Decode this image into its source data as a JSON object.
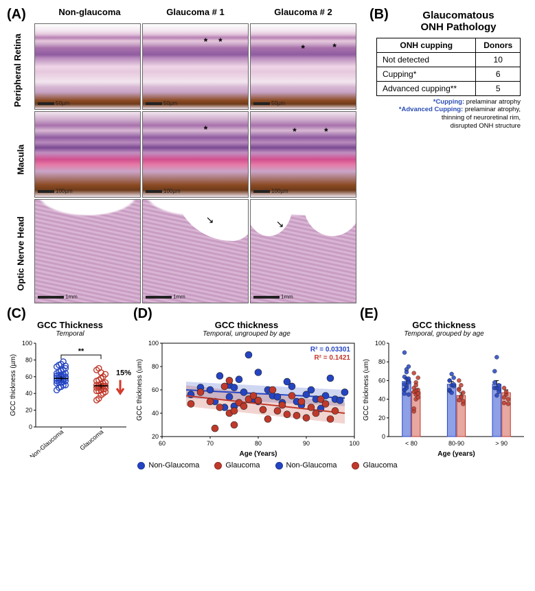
{
  "panelA": {
    "letter": "(A)",
    "col_headers": [
      "Non-glaucoma",
      "Glaucoma # 1",
      "Glaucoma # 2"
    ],
    "row_labels": [
      "Peripheral Retina",
      "Macula",
      "Optic Nerve Head"
    ],
    "scalebars": {
      "row0": "50µm",
      "row1": "100µm",
      "row2": "1mm"
    }
  },
  "panelB": {
    "letter": "(B)",
    "title_line1": "Glaucomatous",
    "title_line2": "ONH Pathology",
    "table": {
      "headers": [
        "ONH cupping",
        "Donors"
      ],
      "rows": [
        [
          "Not detected",
          "10"
        ],
        [
          "Cupping*",
          "6"
        ],
        [
          "Advanced cupping**",
          "5"
        ]
      ]
    },
    "footnote": {
      "l1_label": "*Cupping:",
      "l1_text": " prelaminar atrophy",
      "l2_label": "*Advanced Cupping:",
      "l2_text": " prelaminar atrophy,",
      "l3": "thinning of neuroretinal rim,",
      "l4": "disrupted ONH structure"
    }
  },
  "panelC": {
    "letter": "(C)",
    "title": "GCC Thickness",
    "subtitle": "Temporal",
    "plot": {
      "type": "scatter-groups",
      "ylabel": "GCC thickness (µm)",
      "ylim": [
        0,
        100
      ],
      "ytick_step": 20,
      "groups": [
        "Non-Glaucoma",
        "Glaucoma"
      ],
      "sig_label": "**",
      "pct_label": "15%",
      "arrow_color": "#d43a2a",
      "colors": {
        "Non-Glaucoma": "#2544c2",
        "Glaucoma": "#c0392b"
      },
      "marker_size": 4,
      "mean_se": {
        "Non-Glaucoma": [
          58,
          3
        ],
        "Glaucoma": [
          49,
          3
        ]
      },
      "points": {
        "Non-Glaucoma": [
          44,
          47,
          48,
          50,
          50,
          52,
          53,
          53,
          54,
          55,
          55,
          56,
          57,
          57,
          58,
          58,
          59,
          59,
          60,
          60,
          61,
          62,
          62,
          63,
          64,
          64,
          66,
          67,
          68,
          70,
          72,
          74,
          75,
          78,
          73
        ],
        "Glaucoma": [
          32,
          34,
          38,
          40,
          42,
          43,
          43,
          44,
          45,
          46,
          47,
          47,
          48,
          49,
          49,
          50,
          50,
          51,
          52,
          53,
          55,
          56,
          58,
          60,
          63,
          68,
          70,
          65
        ]
      }
    }
  },
  "panelD": {
    "letter": "(D)",
    "title": "GCC thickness",
    "subtitle": "Temporal, ungrouped by age",
    "plot": {
      "type": "scatter-regression",
      "xlabel": "Age (Years)",
      "ylabel": "GCC thickness (um)",
      "xlim": [
        60,
        100
      ],
      "xtick_step": 10,
      "ylim": [
        20,
        100
      ],
      "ytick_step": 20,
      "r2_blue_label": "R² = 0.03301",
      "r2_red_label": "R² = 0.1421",
      "colors": {
        "Non-Glaucoma": "#2544c2",
        "Glaucoma": "#c0392b"
      },
      "band_alpha": 0.22,
      "marker_size": 5,
      "lines": {
        "Non-Glaucoma": {
          "x0": 65,
          "y0": 60,
          "x1": 98,
          "y1": 53
        },
        "Glaucoma": {
          "x0": 65,
          "y0": 55,
          "x1": 98,
          "y1": 40
        }
      },
      "band_halfwidth": {
        "Non-Glaucoma": 7,
        "Glaucoma": 9
      },
      "points": {
        "Non-Glaucoma": [
          [
            66,
            56
          ],
          [
            68,
            62
          ],
          [
            70,
            60
          ],
          [
            71,
            50
          ],
          [
            72,
            72
          ],
          [
            73,
            45
          ],
          [
            74,
            64
          ],
          [
            74,
            54
          ],
          [
            75,
            62
          ],
          [
            75,
            46
          ],
          [
            76,
            69
          ],
          [
            77,
            58
          ],
          [
            78,
            90
          ],
          [
            79,
            52
          ],
          [
            80,
            75
          ],
          [
            80,
            50
          ],
          [
            82,
            60
          ],
          [
            83,
            55
          ],
          [
            84,
            54
          ],
          [
            85,
            49
          ],
          [
            86,
            67
          ],
          [
            87,
            63
          ],
          [
            88,
            50
          ],
          [
            89,
            47
          ],
          [
            90,
            56
          ],
          [
            91,
            60
          ],
          [
            92,
            52
          ],
          [
            93,
            44
          ],
          [
            94,
            55
          ],
          [
            95,
            70
          ],
          [
            96,
            52
          ],
          [
            97,
            51
          ],
          [
            98,
            58
          ]
        ],
        "Glaucoma": [
          [
            66,
            48
          ],
          [
            68,
            58
          ],
          [
            70,
            50
          ],
          [
            71,
            27
          ],
          [
            72,
            45
          ],
          [
            73,
            63
          ],
          [
            74,
            68
          ],
          [
            74,
            40
          ],
          [
            75,
            42
          ],
          [
            75,
            30
          ],
          [
            76,
            49
          ],
          [
            77,
            46
          ],
          [
            78,
            52
          ],
          [
            79,
            55
          ],
          [
            80,
            51
          ],
          [
            81,
            43
          ],
          [
            82,
            35
          ],
          [
            83,
            60
          ],
          [
            84,
            42
          ],
          [
            85,
            47
          ],
          [
            86,
            39
          ],
          [
            87,
            55
          ],
          [
            88,
            38
          ],
          [
            89,
            50
          ],
          [
            90,
            36
          ],
          [
            91,
            45
          ],
          [
            92,
            40
          ],
          [
            93,
            52
          ],
          [
            94,
            48
          ],
          [
            95,
            35
          ],
          [
            96,
            42
          ]
        ]
      }
    }
  },
  "panelE": {
    "letter": "(E)",
    "title": "GCC thickness",
    "subtitle": "Temporal, grouped by age",
    "plot": {
      "type": "grouped-bar-with-points",
      "ylabel": "GCC thickness (um)",
      "xlabel": "Age (years)",
      "ylim": [
        0,
        100
      ],
      "ytick_step": 20,
      "groups": [
        "< 80",
        "80-90",
        "> 90"
      ],
      "series": [
        "Non-Glaucoma",
        "Glaucoma"
      ],
      "colors": {
        "Non-Glaucoma_fill": "#8ea0e6",
        "Non-Glaucoma_edge": "#2544c2",
        "Glaucoma_fill": "#e6a8a1",
        "Glaucoma_edge": "#c0392b"
      },
      "bar_width": 0.38,
      "means_se": {
        "Non-Glaucoma": [
          [
            59,
            4
          ],
          [
            56,
            3
          ],
          [
            56,
            4
          ]
        ],
        "Glaucoma": [
          [
            48,
            3
          ],
          [
            44,
            3
          ],
          [
            47,
            3
          ]
        ]
      },
      "points": {
        "Non-Glaucoma": [
          [
            56,
            62,
            60,
            50,
            72,
            45,
            64,
            54,
            62,
            46,
            69,
            58,
            90,
            52,
            75,
            50
          ],
          [
            60,
            55,
            54,
            49,
            67,
            63,
            50,
            47,
            56,
            60
          ],
          [
            52,
            44,
            55,
            70,
            52,
            51,
            58,
            85,
            48
          ]
        ],
        "Glaucoma": [
          [
            48,
            58,
            50,
            27,
            45,
            63,
            68,
            40,
            42,
            30,
            49,
            46,
            52,
            55
          ],
          [
            51,
            43,
            35,
            60,
            42,
            47,
            39,
            55,
            38,
            50
          ],
          [
            36,
            45,
            40,
            52,
            48,
            35,
            42
          ]
        ]
      }
    }
  },
  "legend": {
    "items": [
      "Non-Glaucoma",
      "Glaucoma",
      "Non-Glaucoma",
      "Glaucoma"
    ],
    "colors": [
      "#2544c2",
      "#c0392b",
      "#2544c2",
      "#c0392b"
    ]
  }
}
